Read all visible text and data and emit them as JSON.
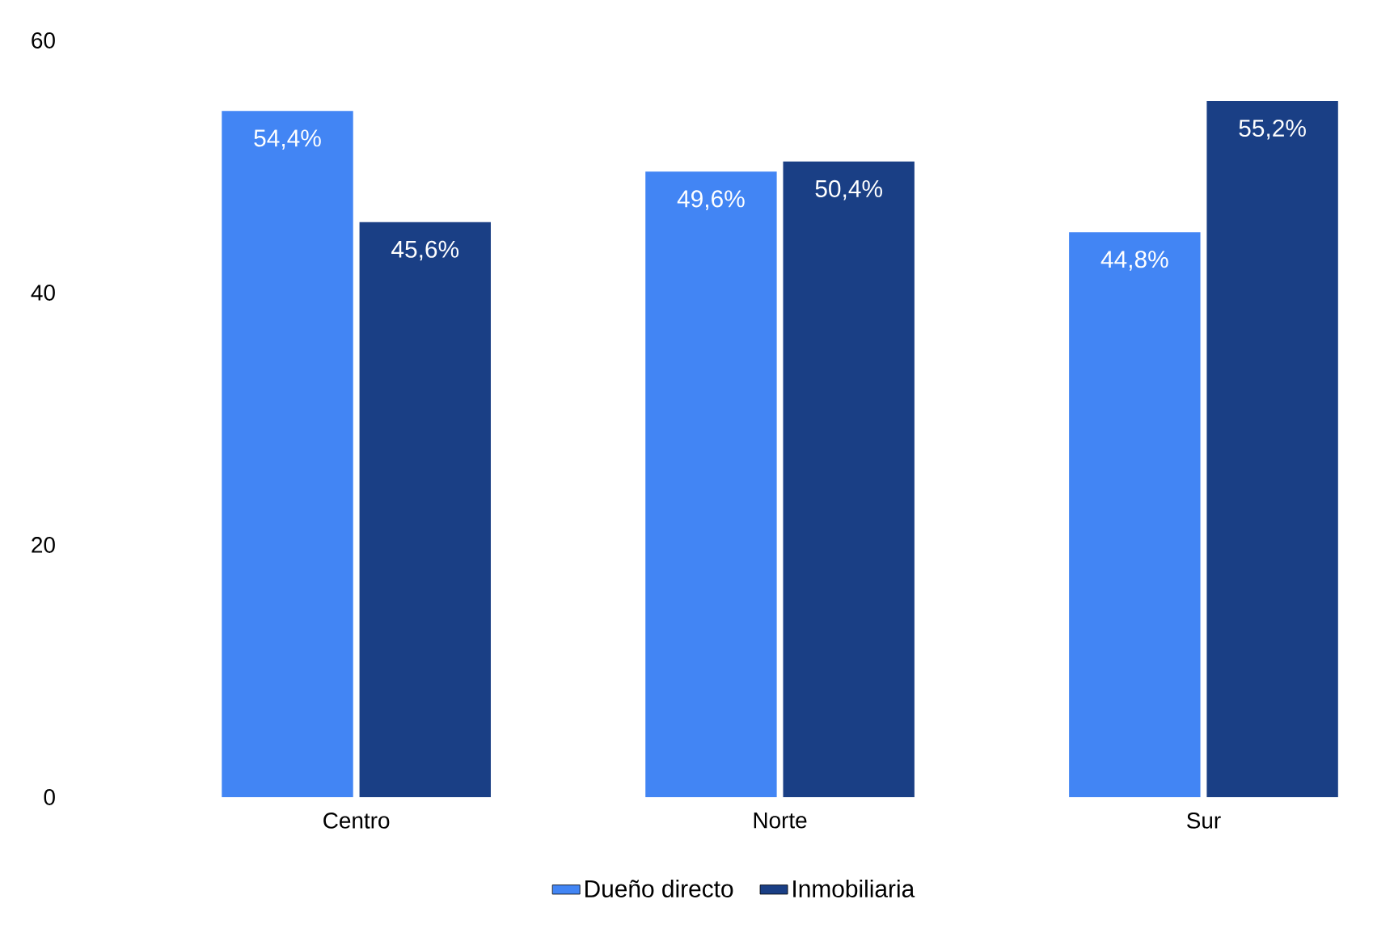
{
  "chart_data": {
    "type": "bar",
    "categories": [
      "Centro",
      "Norte",
      "Sur"
    ],
    "series": [
      {
        "name": "Dueño directo",
        "color": "#4285f4",
        "values": [
          54.4,
          49.6,
          44.8
        ],
        "value_labels": [
          "54,4%",
          "49,6%",
          "44,8%"
        ]
      },
      {
        "name": "Inmobiliaria",
        "color": "#1a3f85",
        "values": [
          45.6,
          50.4,
          55.2
        ],
        "value_labels": [
          "45,6%",
          "50,4%",
          "55,2%"
        ]
      }
    ],
    "ylim": [
      0,
      60
    ],
    "yticks": [
      0,
      20,
      40,
      60
    ],
    "grid": false,
    "legend": "bottom"
  }
}
